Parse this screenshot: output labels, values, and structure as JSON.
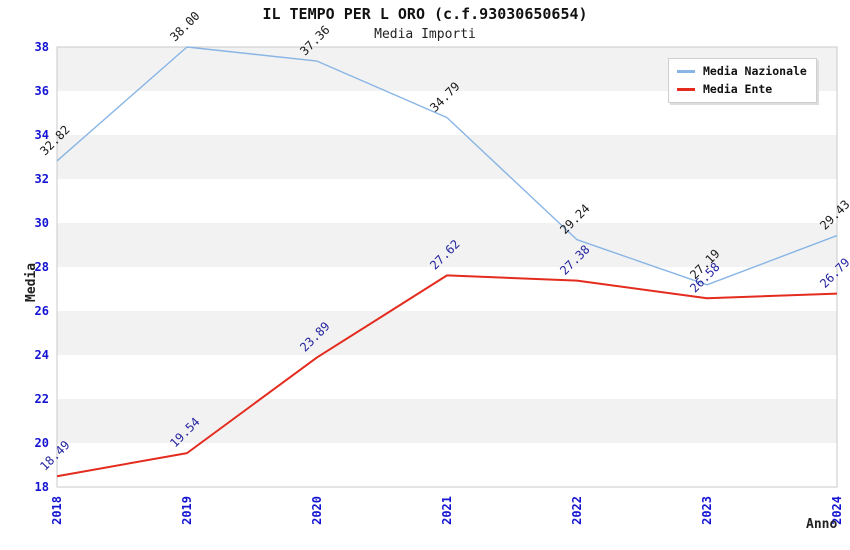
{
  "chart_data": {
    "type": "line",
    "title": "IL TEMPO PER L ORO (c.f.93030650654)",
    "subtitle": "Media Importi",
    "xlabel": "Anno",
    "ylabel": "Media",
    "x": [
      2018,
      2019,
      2020,
      2021,
      2022,
      2023,
      2024
    ],
    "series": [
      {
        "name": "Media Nazionale",
        "color": "#89b5e5",
        "label_color": "#1a1a1a",
        "values": [
          32.82,
          38.0,
          37.36,
          34.79,
          29.24,
          27.19,
          29.43
        ]
      },
      {
        "name": "Media Ente",
        "color": "#e32b1e",
        "label_color": "#23239f",
        "values": [
          18.49,
          19.54,
          23.89,
          27.62,
          27.38,
          26.58,
          26.79
        ]
      }
    ],
    "ylim": [
      18,
      38
    ],
    "ytick_step": 2,
    "y_ticks": [
      18,
      20,
      22,
      24,
      26,
      28,
      30,
      32,
      34,
      36,
      38
    ],
    "grid": "alternating-horizontal-bands",
    "legend_position": "top-right",
    "value_labels": true,
    "value_label_rotation": -45,
    "x_tick_rotation": -90
  },
  "colors": {
    "band": "#f2f2f2",
    "plot_background": "#ffffff",
    "plot_border": "#c9c9c9",
    "axis_tick_label": "#1414d2",
    "title_text": "#111111",
    "legend_border": "#cfcfcf"
  }
}
